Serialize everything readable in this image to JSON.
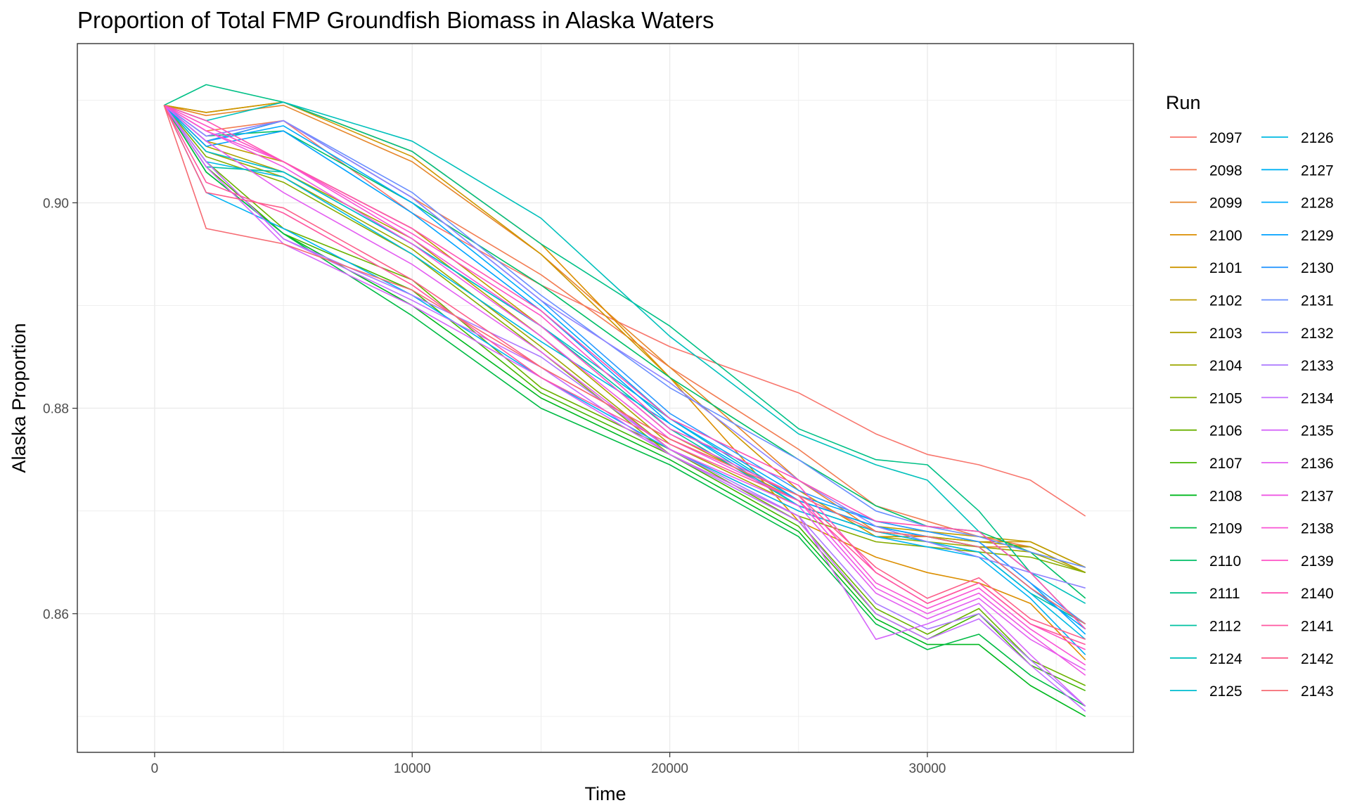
{
  "chart_data": {
    "type": "line",
    "title": "Proportion of Total FMP Groundfish Biomass in Alaska Waters",
    "xlabel": "Time",
    "ylabel": "Alaska Proportion",
    "xlim": [
      -3000,
      38000
    ],
    "ylim": [
      0.8465,
      0.9155
    ],
    "xticks": [
      0,
      10000,
      20000,
      30000
    ],
    "xtick_labels": [
      "0",
      "10000",
      "20000",
      "30000"
    ],
    "yticks": [
      0.86,
      0.88,
      0.9
    ],
    "ytick_labels": [
      "0.86",
      "0.88",
      "0.90"
    ],
    "grid": true,
    "legend_title": "Run",
    "legend_position": "right",
    "series": [
      {
        "name": "2097",
        "color": "#F8766D",
        "x": [
          365,
          2000,
          5000,
          10000,
          15000,
          20000,
          25000,
          28000,
          30000,
          32000,
          34000,
          36135
        ],
        "y": [
          0.9095,
          0.906,
          0.908,
          0.899,
          0.892,
          0.886,
          0.8815,
          0.8775,
          0.8755,
          0.8745,
          0.873,
          0.8695
        ]
      },
      {
        "name": "2098",
        "color": "#F27D53",
        "x": [
          365,
          2000,
          5000,
          10000,
          15000,
          20000,
          25000,
          28000,
          30000,
          32000,
          34000,
          36135
        ],
        "y": [
          0.9095,
          0.907,
          0.908,
          0.9005,
          0.893,
          0.884,
          0.876,
          0.8705,
          0.869,
          0.8675,
          0.8665,
          0.864
        ]
      },
      {
        "name": "2099",
        "color": "#E6862A",
        "x": [
          365,
          2000,
          5000,
          10000,
          15000,
          20000,
          25000,
          28000,
          30000,
          32000,
          34000,
          36135
        ],
        "y": [
          0.9095,
          0.9085,
          0.9095,
          0.904,
          0.895,
          0.884,
          0.873,
          0.868,
          0.8675,
          0.8665,
          0.8665,
          0.864
        ]
      },
      {
        "name": "2100",
        "color": "#DB8E00",
        "x": [
          365,
          2000,
          5000,
          10000,
          15000,
          20000,
          25000,
          28000,
          30000,
          32000,
          34000,
          36135
        ],
        "y": [
          0.9095,
          0.9088,
          0.9098,
          0.905,
          0.896,
          0.883,
          0.869,
          0.8655,
          0.864,
          0.863,
          0.861,
          0.8555
        ]
      },
      {
        "name": "2101",
        "color": "#CD9600",
        "x": [
          365,
          2000,
          5000,
          10000,
          15000,
          20000,
          25000,
          28000,
          30000,
          32000,
          34000,
          36135
        ],
        "y": [
          0.9095,
          0.9088,
          0.9098,
          0.9045,
          0.895,
          0.883,
          0.872,
          0.8675,
          0.8675,
          0.867,
          0.867,
          0.8645
        ]
      },
      {
        "name": "2102",
        "color": "#BE9C00",
        "x": [
          365,
          2000,
          5000,
          10000,
          15000,
          20000,
          25000,
          28000,
          30000,
          32000,
          34000,
          36135
        ],
        "y": [
          0.9095,
          0.906,
          0.904,
          0.8975,
          0.888,
          0.8775,
          0.871,
          0.8685,
          0.868,
          0.8675,
          0.867,
          0.8645
        ]
      },
      {
        "name": "2103",
        "color": "#AEA200",
        "x": [
          365,
          2000,
          5000,
          10000,
          15000,
          20000,
          25000,
          28000,
          30000,
          32000,
          34000,
          36135
        ],
        "y": [
          0.9095,
          0.9055,
          0.903,
          0.8965,
          0.887,
          0.8765,
          0.8705,
          0.868,
          0.8675,
          0.867,
          0.8665,
          0.864
        ]
      },
      {
        "name": "2104",
        "color": "#9CA700",
        "x": [
          365,
          2000,
          5000,
          10000,
          15000,
          20000,
          25000,
          28000,
          30000,
          32000,
          34000,
          36135
        ],
        "y": [
          0.9095,
          0.905,
          0.9025,
          0.8955,
          0.886,
          0.876,
          0.87,
          0.8675,
          0.867,
          0.8665,
          0.866,
          0.864
        ]
      },
      {
        "name": "2105",
        "color": "#86AC00",
        "x": [
          365,
          2000,
          5000,
          10000,
          15000,
          20000,
          25000,
          28000,
          30000,
          32000,
          34000,
          36135
        ],
        "y": [
          0.9095,
          0.9045,
          0.902,
          0.895,
          0.8855,
          0.8755,
          0.8695,
          0.867,
          0.8665,
          0.866,
          0.8655,
          0.864
        ]
      },
      {
        "name": "2106",
        "color": "#6BB100",
        "x": [
          365,
          2000,
          5000,
          10000,
          15000,
          20000,
          25000,
          28000,
          30000,
          32000,
          34000,
          36135
        ],
        "y": [
          0.9095,
          0.904,
          0.8975,
          0.8925,
          0.882,
          0.876,
          0.869,
          0.8605,
          0.858,
          0.8605,
          0.8555,
          0.853
        ]
      },
      {
        "name": "2107",
        "color": "#43B500",
        "x": [
          365,
          2000,
          5000,
          10000,
          15000,
          20000,
          25000,
          28000,
          30000,
          32000,
          34000,
          36135
        ],
        "y": [
          0.9095,
          0.9035,
          0.897,
          0.8915,
          0.8815,
          0.8755,
          0.8685,
          0.86,
          0.8575,
          0.86,
          0.855,
          0.8525
        ]
      },
      {
        "name": "2108",
        "color": "#00B81F",
        "x": [
          365,
          2000,
          5000,
          10000,
          15000,
          20000,
          25000,
          28000,
          30000,
          32000,
          34000,
          36135
        ],
        "y": [
          0.9095,
          0.903,
          0.897,
          0.89,
          0.881,
          0.875,
          0.868,
          0.8595,
          0.857,
          0.857,
          0.853,
          0.85
        ]
      },
      {
        "name": "2109",
        "color": "#00BB44",
        "x": [
          365,
          2000,
          5000,
          10000,
          15000,
          20000,
          25000,
          28000,
          30000,
          32000,
          34000,
          36135
        ],
        "y": [
          0.9095,
          0.903,
          0.897,
          0.889,
          0.88,
          0.8745,
          0.8675,
          0.859,
          0.8565,
          0.858,
          0.854,
          0.851
        ]
      },
      {
        "name": "2110",
        "color": "#00BE67",
        "x": [
          365,
          2000,
          5000,
          10000,
          15000,
          20000,
          25000,
          28000,
          30000,
          32000,
          34000,
          36135
        ],
        "y": [
          0.9095,
          0.9065,
          0.907,
          0.9,
          0.892,
          0.883,
          0.875,
          0.8705,
          0.8685,
          0.868,
          0.866,
          0.8615
        ]
      },
      {
        "name": "2111",
        "color": "#00C086",
        "x": [
          365,
          2000,
          5000,
          10000,
          15000,
          20000,
          25000,
          28000,
          30000,
          32000,
          34000,
          36135
        ],
        "y": [
          0.9095,
          0.9115,
          0.9098,
          0.905,
          0.896,
          0.888,
          0.878,
          0.875,
          0.8745,
          0.87,
          0.864,
          0.8585
        ]
      },
      {
        "name": "2112",
        "color": "#00C1A2",
        "x": [
          365,
          2000,
          5000,
          10000,
          15000,
          20000,
          25000,
          28000,
          30000,
          32000,
          34000,
          36135
        ],
        "y": [
          0.9095,
          0.9035,
          0.903,
          0.896,
          0.888,
          0.878,
          0.8705,
          0.868,
          0.867,
          0.866,
          0.862,
          0.859
        ]
      },
      {
        "name": "2124",
        "color": "#00C0BB",
        "x": [
          365,
          2000,
          5000,
          10000,
          15000,
          20000,
          25000,
          28000,
          30000,
          32000,
          34000,
          36135
        ],
        "y": [
          0.9095,
          0.908,
          0.9098,
          0.906,
          0.8985,
          0.887,
          0.8775,
          0.8745,
          0.873,
          0.868,
          0.864,
          0.861
        ]
      },
      {
        "name": "2125",
        "color": "#00BDD0",
        "x": [
          365,
          2000,
          5000,
          10000,
          15000,
          20000,
          25000,
          28000,
          30000,
          32000,
          34000,
          36135
        ],
        "y": [
          0.9095,
          0.905,
          0.903,
          0.896,
          0.888,
          0.879,
          0.871,
          0.8685,
          0.8675,
          0.8665,
          0.8625,
          0.859
        ]
      },
      {
        "name": "2126",
        "color": "#00B9E3",
        "x": [
          365,
          2000,
          5000,
          10000,
          15000,
          20000,
          25000,
          28000,
          30000,
          32000,
          34000,
          36135
        ],
        "y": [
          0.9095,
          0.904,
          0.9025,
          0.895,
          0.8865,
          0.8785,
          0.8705,
          0.868,
          0.867,
          0.866,
          0.862,
          0.8575
        ]
      },
      {
        "name": "2127",
        "color": "#00B2F3",
        "x": [
          365,
          2000,
          5000,
          10000,
          15000,
          20000,
          25000,
          28000,
          30000,
          32000,
          34000,
          36135
        ],
        "y": [
          0.9095,
          0.901,
          0.8975,
          0.891,
          0.883,
          0.876,
          0.87,
          0.8675,
          0.8665,
          0.8655,
          0.8615,
          0.856
        ]
      },
      {
        "name": "2128",
        "color": "#00ABFD",
        "x": [
          365,
          2000,
          5000,
          10000,
          15000,
          20000,
          25000,
          28000,
          30000,
          32000,
          34000,
          36135
        ],
        "y": [
          0.9095,
          0.906,
          0.9075,
          0.9,
          0.89,
          0.879,
          0.8715,
          0.869,
          0.868,
          0.867,
          0.863,
          0.858
        ]
      },
      {
        "name": "2129",
        "color": "#00A2FF",
        "x": [
          365,
          2000,
          5000,
          10000,
          15000,
          20000,
          25000,
          28000,
          30000,
          32000,
          34000,
          36135
        ],
        "y": [
          0.9095,
          0.9055,
          0.907,
          0.899,
          0.8895,
          0.8785,
          0.871,
          0.8685,
          0.8675,
          0.8665,
          0.8625,
          0.8585
        ]
      },
      {
        "name": "2130",
        "color": "#2C99FF",
        "x": [
          365,
          2000,
          5000,
          10000,
          15000,
          20000,
          25000,
          28000,
          30000,
          32000,
          34000,
          36135
        ],
        "y": [
          0.9095,
          0.906,
          0.908,
          0.9005,
          0.8905,
          0.8795,
          0.872,
          0.869,
          0.868,
          0.867,
          0.863,
          0.859
        ]
      },
      {
        "name": "2131",
        "color": "#6A8FFF",
        "x": [
          365,
          2000,
          5000,
          10000,
          15000,
          20000,
          25000,
          28000,
          30000,
          32000,
          34000,
          36135
        ],
        "y": [
          0.9095,
          0.9065,
          0.908,
          0.901,
          0.891,
          0.882,
          0.875,
          0.87,
          0.8685,
          0.8675,
          0.866,
          0.8645
        ]
      },
      {
        "name": "2132",
        "color": "#8F84FF",
        "x": [
          365,
          2000,
          5000,
          10000,
          15000,
          20000,
          25000,
          28000,
          30000,
          32000,
          34000,
          36135
        ],
        "y": [
          0.9095,
          0.9065,
          0.908,
          0.9005,
          0.8905,
          0.8825,
          0.873,
          0.8685,
          0.867,
          0.8655,
          0.864,
          0.8625
        ]
      },
      {
        "name": "2133",
        "color": "#AC79FF",
        "x": [
          365,
          2000,
          5000,
          10000,
          15000,
          20000,
          25000,
          28000,
          30000,
          32000,
          34000,
          36135
        ],
        "y": [
          0.9095,
          0.904,
          0.8965,
          0.891,
          0.885,
          0.876,
          0.8695,
          0.861,
          0.8585,
          0.86,
          0.8555,
          0.851
        ]
      },
      {
        "name": "2134",
        "color": "#C36FFF",
        "x": [
          365,
          2000,
          5000,
          10000,
          15000,
          20000,
          25000,
          28000,
          30000,
          32000,
          34000,
          36135
        ],
        "y": [
          0.9095,
          0.904,
          0.8965,
          0.8905,
          0.884,
          0.8755,
          0.869,
          0.86,
          0.8575,
          0.8595,
          0.855,
          0.8505
        ]
      },
      {
        "name": "2135",
        "color": "#D566FA",
        "x": [
          365,
          2000,
          5000,
          10000,
          15000,
          20000,
          25000,
          28000,
          30000,
          32000,
          34000,
          36135
        ],
        "y": [
          0.9095,
          0.9035,
          0.896,
          0.89,
          0.883,
          0.8755,
          0.8695,
          0.8575,
          0.859,
          0.861,
          0.856,
          0.851
        ]
      },
      {
        "name": "2136",
        "color": "#E35EF1",
        "x": [
          365,
          2000,
          5000,
          10000,
          15000,
          20000,
          25000,
          28000,
          30000,
          32000,
          34000,
          36135
        ],
        "y": [
          0.9095,
          0.906,
          0.901,
          0.894,
          0.8855,
          0.876,
          0.8705,
          0.862,
          0.8595,
          0.8615,
          0.8575,
          0.8545
        ]
      },
      {
        "name": "2137",
        "color": "#EF58E4",
        "x": [
          365,
          2000,
          5000,
          10000,
          15000,
          20000,
          25000,
          28000,
          30000,
          32000,
          34000,
          36135
        ],
        "y": [
          0.9095,
          0.907,
          0.9035,
          0.896,
          0.887,
          0.877,
          0.871,
          0.8625,
          0.86,
          0.862,
          0.858,
          0.854
        ]
      },
      {
        "name": "2138",
        "color": "#F854D6",
        "x": [
          365,
          2000,
          5000,
          10000,
          15000,
          20000,
          25000,
          28000,
          30000,
          32000,
          34000,
          36135
        ],
        "y": [
          0.9095,
          0.907,
          0.904,
          0.8965,
          0.888,
          0.8775,
          0.8715,
          0.863,
          0.8605,
          0.8625,
          0.8585,
          0.855
        ]
      },
      {
        "name": "2139",
        "color": "#FE52C6",
        "x": [
          365,
          2000,
          5000,
          10000,
          15000,
          20000,
          25000,
          28000,
          30000,
          32000,
          34000,
          36135
        ],
        "y": [
          0.9095,
          0.9075,
          0.904,
          0.897,
          0.889,
          0.878,
          0.8725,
          0.864,
          0.861,
          0.863,
          0.859,
          0.8565
        ]
      },
      {
        "name": "2140",
        "color": "#FF53B4",
        "x": [
          365,
          2000,
          5000,
          10000,
          15000,
          20000,
          25000,
          28000,
          30000,
          32000,
          34000,
          36135
        ],
        "y": [
          0.9095,
          0.908,
          0.904,
          0.8975,
          0.8895,
          0.879,
          0.873,
          0.869,
          0.8685,
          0.868,
          0.864,
          0.8585
        ]
      },
      {
        "name": "2141",
        "color": "#FF57A0",
        "x": [
          365,
          2000,
          5000,
          10000,
          15000,
          20000,
          25000,
          28000,
          30000,
          32000,
          34000,
          36135
        ],
        "y": [
          0.9095,
          0.902,
          0.899,
          0.892,
          0.883,
          0.8765,
          0.871,
          0.864,
          0.861,
          0.863,
          0.859,
          0.857
        ]
      },
      {
        "name": "2142",
        "color": "#FC5E8A",
        "x": [
          365,
          2000,
          5000,
          10000,
          15000,
          20000,
          25000,
          28000,
          30000,
          32000,
          34000,
          36135
        ],
        "y": [
          0.9095,
          0.901,
          0.8995,
          0.8925,
          0.884,
          0.877,
          0.8715,
          0.8645,
          0.8615,
          0.8635,
          0.8595,
          0.8575
        ]
      },
      {
        "name": "2143",
        "color": "#F66B73",
        "x": [
          365,
          2000,
          5000,
          10000,
          15000,
          20000,
          25000,
          28000,
          30000,
          32000,
          34000,
          36135
        ],
        "y": [
          0.9095,
          0.8975,
          0.896,
          0.8915,
          0.884,
          0.877,
          0.8715,
          0.868,
          0.8675,
          0.8665,
          0.8625,
          0.859
        ]
      }
    ]
  }
}
